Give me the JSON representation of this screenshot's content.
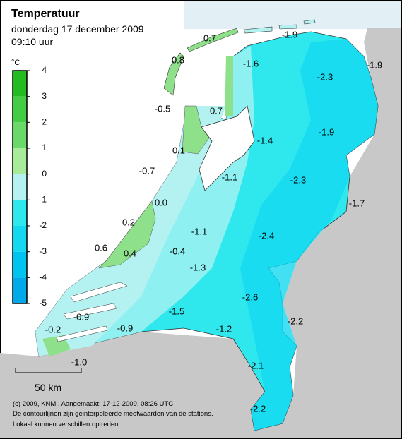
{
  "header": {
    "title": "Temperatuur",
    "date": "donderdag 17 december 2009",
    "time": "09:10 uur"
  },
  "legend": {
    "unit": "°C",
    "ticks": [
      4,
      3,
      2,
      1,
      0,
      -1,
      -2,
      -3,
      -4,
      -5
    ],
    "colors": [
      "#22bb22",
      "#44cc44",
      "#6ad96a",
      "#a6ec99",
      "#b4f2f2",
      "#2ee8ee",
      "#14d8f0",
      "#00c4f0",
      "#00aaea"
    ]
  },
  "stations": [
    "0.7",
    "-1.9",
    "0.8",
    "-1.6",
    "-2.3",
    "-1.9",
    "-0.5",
    "0.7",
    "-1.9",
    "-1.4",
    "0.1",
    "-0.7",
    "-1.1",
    "-2.3",
    "-1.7",
    "0.0",
    "0.2",
    "-1.1",
    "-2.4",
    "0.6",
    "0.4",
    "-0.4",
    "-1.3",
    "-2.6",
    "-1.5",
    "-0.9",
    "-2.2",
    "-0.2",
    "-0.9",
    "-1.2",
    "-1.0",
    "-2.1",
    "-2.2"
  ],
  "scale": "50 km",
  "footer": [
    "(c) 2009, KNMI. Aangemaakt: 17-12-2009, 08:26 UTC",
    "De contourlijnen zijn geinterpoleerde meetwaarden van de stations.",
    "Lokaal kunnen verschillen optreden."
  ]
}
